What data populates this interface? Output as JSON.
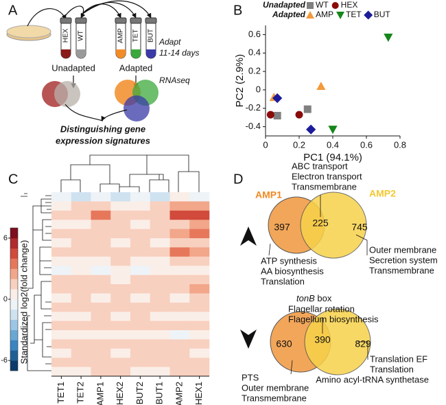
{
  "panel_labels": [
    "A",
    "B",
    "C",
    "D"
  ],
  "panel_a": {
    "tubes_unadapted": [
      "HEX",
      "WT"
    ],
    "tubes_adapted": [
      "AMP",
      "TET",
      "BUT"
    ],
    "adapt_note": [
      "Adapt",
      "11-14 days"
    ],
    "unadapted": "Unadapted",
    "adapted": "Adapted",
    "rnaseq": "RNAseq",
    "conclusion": [
      "Distinguishing gene",
      "expression signatures"
    ]
  },
  "chart_data": [
    {
      "type": "scatter",
      "xlabel": "PC1 (94.1%)",
      "ylabel": "PC2 (2.9%)",
      "legend_groups": [
        "Unadapted",
        "Adapted"
      ],
      "xlim": [
        0,
        0.8
      ],
      "xticks": [
        0,
        0.2,
        0.4,
        0.6,
        0.8
      ],
      "ylim": [
        -0.5,
        0.7
      ],
      "yticks": [
        -0.4,
        -0.2,
        0,
        0.2,
        0.4,
        0.6
      ],
      "series": [
        {
          "name": "WT",
          "color": "#808080",
          "marker": "square",
          "x": [
            0.07,
            0.25
          ],
          "y": [
            -0.28,
            -0.21
          ]
        },
        {
          "name": "HEX",
          "color": "#8b0a0a",
          "marker": "circle",
          "x": [
            0.03,
            0.2
          ],
          "y": [
            -0.27,
            -0.27
          ]
        },
        {
          "name": "AMP",
          "color": "#f39a3c",
          "marker": "triangle-up",
          "x": [
            0.05,
            0.33
          ],
          "y": [
            -0.08,
            0.04
          ]
        },
        {
          "name": "TET",
          "color": "#15871a",
          "marker": "triangle-down",
          "x": [
            0.73,
            0.4
          ],
          "y": [
            0.57,
            -0.43
          ]
        },
        {
          "name": "BUT",
          "color": "#1c1c9a",
          "marker": "diamond",
          "x": [
            0.07,
            0.27
          ],
          "y": [
            -0.09,
            -0.43
          ]
        }
      ]
    },
    {
      "type": "heatmap",
      "ylabel": "Standardized log2(fold change)",
      "categories": [
        "TET1",
        "TET2",
        "AMP1",
        "HEX2",
        "BUT2",
        "BUT1",
        "AMP2",
        "HEX1"
      ],
      "clim": [
        -7,
        7
      ],
      "cticks": [
        6,
        0,
        -6
      ],
      "colorscale": [
        "#0b3a6b",
        "#1f5f96",
        "#3b85c0",
        "#6aa8d4",
        "#9dc6e5",
        "#cfe2f0",
        "#eef3f8",
        "#faeee8",
        "#f8d0bf",
        "#f2a68a",
        "#e6775b",
        "#d14a3c",
        "#b02a2e",
        "#7d0f1e"
      ],
      "values": [
        [
          -1,
          -1.5,
          -1,
          -2,
          -1,
          -1.5,
          0,
          -0.5
        ],
        [
          0.5,
          1,
          1,
          0.5,
          0.5,
          1,
          2,
          2
        ],
        [
          1,
          1,
          3,
          1,
          1,
          1,
          4,
          4
        ],
        [
          0.5,
          0.5,
          1,
          1,
          0.5,
          1,
          1.5,
          2
        ],
        [
          1,
          1,
          1.5,
          1,
          1,
          1,
          2,
          3
        ],
        [
          0.5,
          1,
          1,
          0.5,
          1,
          0.5,
          1,
          1
        ],
        [
          1,
          1.5,
          1,
          1,
          1,
          1,
          3,
          2
        ],
        [
          0.5,
          0.5,
          0.5,
          1,
          0.5,
          0.5,
          1,
          1
        ],
        [
          -0.5,
          0,
          -1,
          0,
          -0.5,
          0,
          0.5,
          0
        ],
        [
          1,
          1,
          1,
          0.5,
          1,
          1,
          1,
          1.5
        ],
        [
          1.5,
          1,
          1,
          1,
          1,
          1,
          1,
          2
        ],
        [
          0.5,
          1,
          0.5,
          1,
          0.5,
          1,
          0.5,
          1
        ],
        [
          1,
          1,
          1,
          1,
          1.5,
          1,
          1,
          1
        ],
        [
          0.5,
          0.5,
          1,
          0.5,
          1,
          0.5,
          0,
          0.5
        ],
        [
          1,
          1,
          1,
          1,
          1,
          1,
          1,
          1
        ],
        [
          0,
          0.5,
          0,
          0.5,
          0,
          0.5,
          -0.5,
          0
        ],
        [
          1,
          1.5,
          1,
          1,
          1,
          1,
          1,
          1
        ],
        [
          0.5,
          1,
          1,
          0.5,
          1,
          1,
          1,
          0.5
        ],
        [
          1,
          1,
          1.5,
          1,
          1,
          1,
          1,
          1
        ],
        [
          0.5,
          0.5,
          1,
          1,
          0.5,
          0.5,
          1,
          1
        ]
      ]
    }
  ],
  "panel_d": {
    "set_left": "AMP1",
    "set_right": "AMP2",
    "up": {
      "counts": [
        397,
        225,
        745
      ],
      "shared_terms": [
        "ABC transport",
        "Electron transport",
        "Transmembrane"
      ],
      "left_terms": [
        "ATP synthesis",
        "AA biosynthesis",
        "Translation"
      ],
      "right_terms": [
        "Outer membrane",
        "Secretion system",
        "Transmembrane"
      ]
    },
    "down": {
      "counts": [
        630,
        390,
        829
      ],
      "shared_terms_first": {
        "italic": "tonB",
        "rest": " box"
      },
      "shared_terms": [
        "Flagellar rotation",
        "Flagellum biosynthesis"
      ],
      "left_terms": [
        "PTS",
        "Outer membrane",
        "Transmembrane"
      ],
      "right_terms": [
        "Translation EF",
        "Translation",
        "Amino acyl-tRNA synthetase"
      ]
    }
  }
}
